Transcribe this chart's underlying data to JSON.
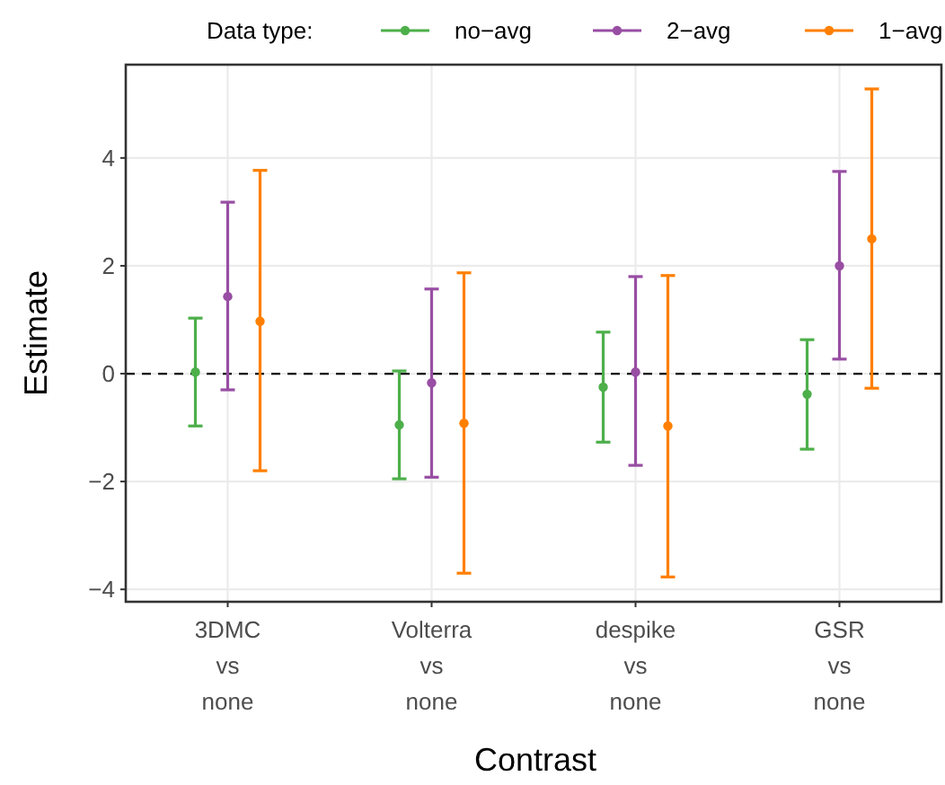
{
  "chart_data": {
    "type": "scatter",
    "xlabel": "Contrast",
    "ylabel": "Estimate",
    "legend_title": "Data type:",
    "legend": "top",
    "grid": true,
    "marker": "circle",
    "categories": [
      "3DMC\nvs\nnone",
      "Volterra\nvs\nnone",
      "despike\nvs\nnone",
      "GSR\nvs\nnone"
    ],
    "ylim": [
      -4.23,
      5.73
    ],
    "yticks": [
      {
        "value": -4,
        "label": "−4"
      },
      {
        "value": -2,
        "label": "−2"
      },
      0,
      2,
      4
    ],
    "ref_lines": [
      {
        "axis": "y",
        "value": 0,
        "color": "#000000",
        "line_style": "dashed"
      }
    ],
    "series": [
      {
        "name": "no−avg",
        "color": "#4daf4a",
        "values": [
          0.03,
          -0.95,
          -0.25,
          -0.38
        ],
        "errors": [
          [
            -0.97,
            1.03
          ],
          [
            -1.95,
            0.05
          ],
          [
            -1.27,
            0.77
          ],
          [
            -1.4,
            0.63
          ]
        ]
      },
      {
        "name": "2−avg",
        "color": "#984ea3",
        "values": [
          1.43,
          -0.17,
          0.03,
          2.0
        ],
        "errors": [
          [
            -0.3,
            3.18
          ],
          [
            -1.92,
            1.57
          ],
          [
            -1.7,
            1.8
          ],
          [
            0.27,
            3.75
          ]
        ]
      },
      {
        "name": "1−avg",
        "color": "#ff7f00",
        "values": [
          0.97,
          -0.92,
          -0.97,
          2.5
        ],
        "errors": [
          [
            -1.8,
            3.77
          ],
          [
            -3.7,
            1.87
          ],
          [
            -3.77,
            1.82
          ],
          [
            -0.27,
            5.28
          ]
        ]
      }
    ]
  }
}
